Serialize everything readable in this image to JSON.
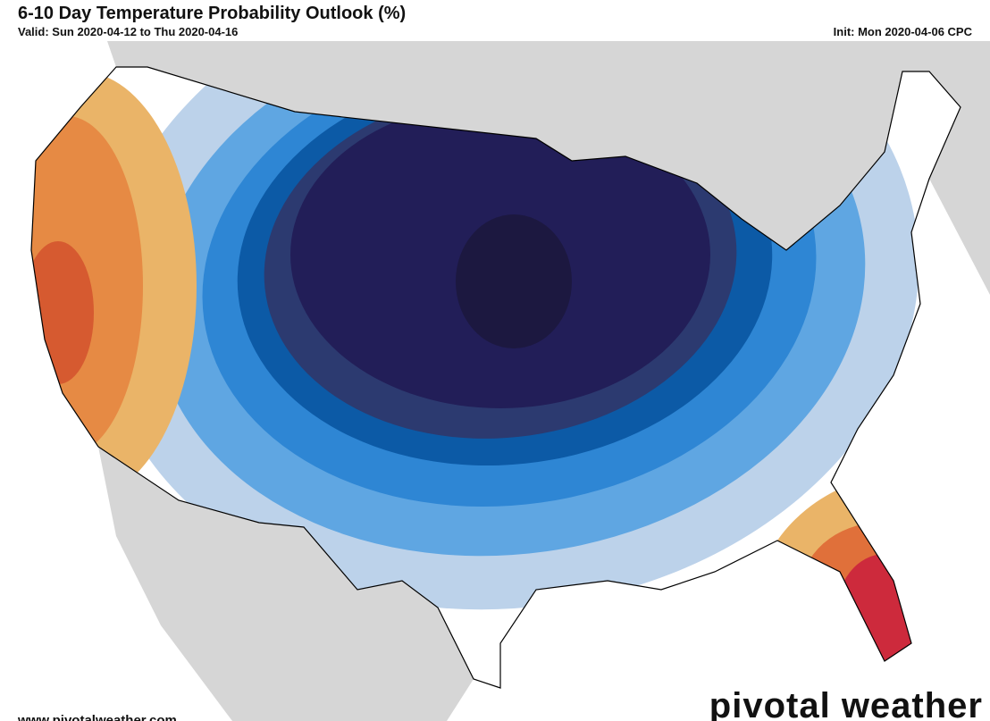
{
  "header": {
    "title": "6-10 Day Temperature Probability Outlook (%)",
    "valid": "Valid: Sun 2020-04-12 to Thu 2020-04-16",
    "init": "Init: Mon 2020-04-06 CPC"
  },
  "footer": {
    "url": "www.pivotalweather.com",
    "watermark": "pivotal weather"
  }
}
